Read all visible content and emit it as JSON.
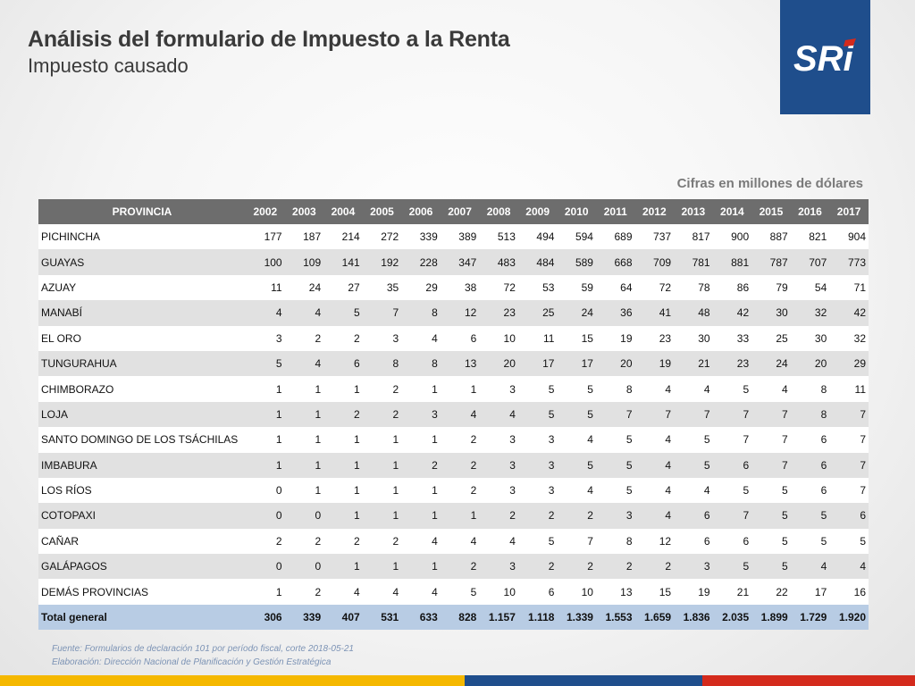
{
  "header": {
    "title": "Análisis del formulario de Impuesto a la Renta",
    "subtitle": "Impuesto causado"
  },
  "logo": {
    "text": "SRi",
    "bg_color": "#1f4e8c"
  },
  "unit_note": "Cifras en millones de dólares",
  "table": {
    "columns": [
      "PROVINCIA",
      "2002",
      "2003",
      "2004",
      "2005",
      "2006",
      "2007",
      "2008",
      "2009",
      "2010",
      "2011",
      "2012",
      "2013",
      "2014",
      "2015",
      "2016",
      "2017"
    ],
    "rows": [
      [
        "PICHINCHA",
        "177",
        "187",
        "214",
        "272",
        "339",
        "389",
        "513",
        "494",
        "594",
        "689",
        "737",
        "817",
        "900",
        "887",
        "821",
        "904"
      ],
      [
        "GUAYAS",
        "100",
        "109",
        "141",
        "192",
        "228",
        "347",
        "483",
        "484",
        "589",
        "668",
        "709",
        "781",
        "881",
        "787",
        "707",
        "773"
      ],
      [
        "AZUAY",
        "11",
        "24",
        "27",
        "35",
        "29",
        "38",
        "72",
        "53",
        "59",
        "64",
        "72",
        "78",
        "86",
        "79",
        "54",
        "71"
      ],
      [
        "MANABÍ",
        "4",
        "4",
        "5",
        "7",
        "8",
        "12",
        "23",
        "25",
        "24",
        "36",
        "41",
        "48",
        "42",
        "30",
        "32",
        "42"
      ],
      [
        "EL ORO",
        "3",
        "2",
        "2",
        "3",
        "4",
        "6",
        "10",
        "11",
        "15",
        "19",
        "23",
        "30",
        "33",
        "25",
        "30",
        "32"
      ],
      [
        "TUNGURAHUA",
        "5",
        "4",
        "6",
        "8",
        "8",
        "13",
        "20",
        "17",
        "17",
        "20",
        "19",
        "21",
        "23",
        "24",
        "20",
        "29"
      ],
      [
        "CHIMBORAZO",
        "1",
        "1",
        "1",
        "2",
        "1",
        "1",
        "3",
        "5",
        "5",
        "8",
        "4",
        "4",
        "5",
        "4",
        "8",
        "11"
      ],
      [
        "LOJA",
        "1",
        "1",
        "2",
        "2",
        "3",
        "4",
        "4",
        "5",
        "5",
        "7",
        "7",
        "7",
        "7",
        "7",
        "8",
        "7"
      ],
      [
        "SANTO DOMINGO DE LOS TSÁCHILAS",
        "1",
        "1",
        "1",
        "1",
        "1",
        "2",
        "3",
        "3",
        "4",
        "5",
        "4",
        "5",
        "7",
        "7",
        "6",
        "7"
      ],
      [
        "IMBABURA",
        "1",
        "1",
        "1",
        "1",
        "2",
        "2",
        "3",
        "3",
        "5",
        "5",
        "4",
        "5",
        "6",
        "7",
        "6",
        "7"
      ],
      [
        "LOS RÍOS",
        "0",
        "1",
        "1",
        "1",
        "1",
        "2",
        "3",
        "3",
        "4",
        "5",
        "4",
        "4",
        "5",
        "5",
        "6",
        "7"
      ],
      [
        "COTOPAXI",
        "0",
        "0",
        "1",
        "1",
        "1",
        "1",
        "2",
        "2",
        "2",
        "3",
        "4",
        "6",
        "7",
        "5",
        "5",
        "6"
      ],
      [
        "CAÑAR",
        "2",
        "2",
        "2",
        "2",
        "4",
        "4",
        "4",
        "5",
        "7",
        "8",
        "12",
        "6",
        "6",
        "5",
        "5",
        "5"
      ],
      [
        "GALÁPAGOS",
        "0",
        "0",
        "1",
        "1",
        "1",
        "2",
        "3",
        "2",
        "2",
        "2",
        "2",
        "3",
        "5",
        "5",
        "4",
        "4"
      ],
      [
        "DEMÁS PROVINCIAS",
        "1",
        "2",
        "4",
        "4",
        "4",
        "5",
        "10",
        "6",
        "10",
        "13",
        "15",
        "19",
        "21",
        "22",
        "17",
        "16"
      ]
    ],
    "total": [
      "Total general",
      "306",
      "339",
      "407",
      "531",
      "633",
      "828",
      "1.157",
      "1.118",
      "1.339",
      "1.553",
      "1.659",
      "1.836",
      "2.035",
      "1.899",
      "1.729",
      "1.920"
    ]
  },
  "footer": {
    "source": "Fuente: Formularios de declaración 101 por período fiscal, corte 2018-05-21",
    "elaboration": "Elaboración: Dirección Nacional de Planificación y Gestión Estratégica"
  },
  "colors": {
    "header_bg": "#6d6d6d",
    "total_bg": "#b8cce4",
    "band_gray": "#e1e1e1",
    "bar_yellow": "#f5b800",
    "bar_blue": "#1f4e8c",
    "bar_red": "#d42a1c"
  }
}
